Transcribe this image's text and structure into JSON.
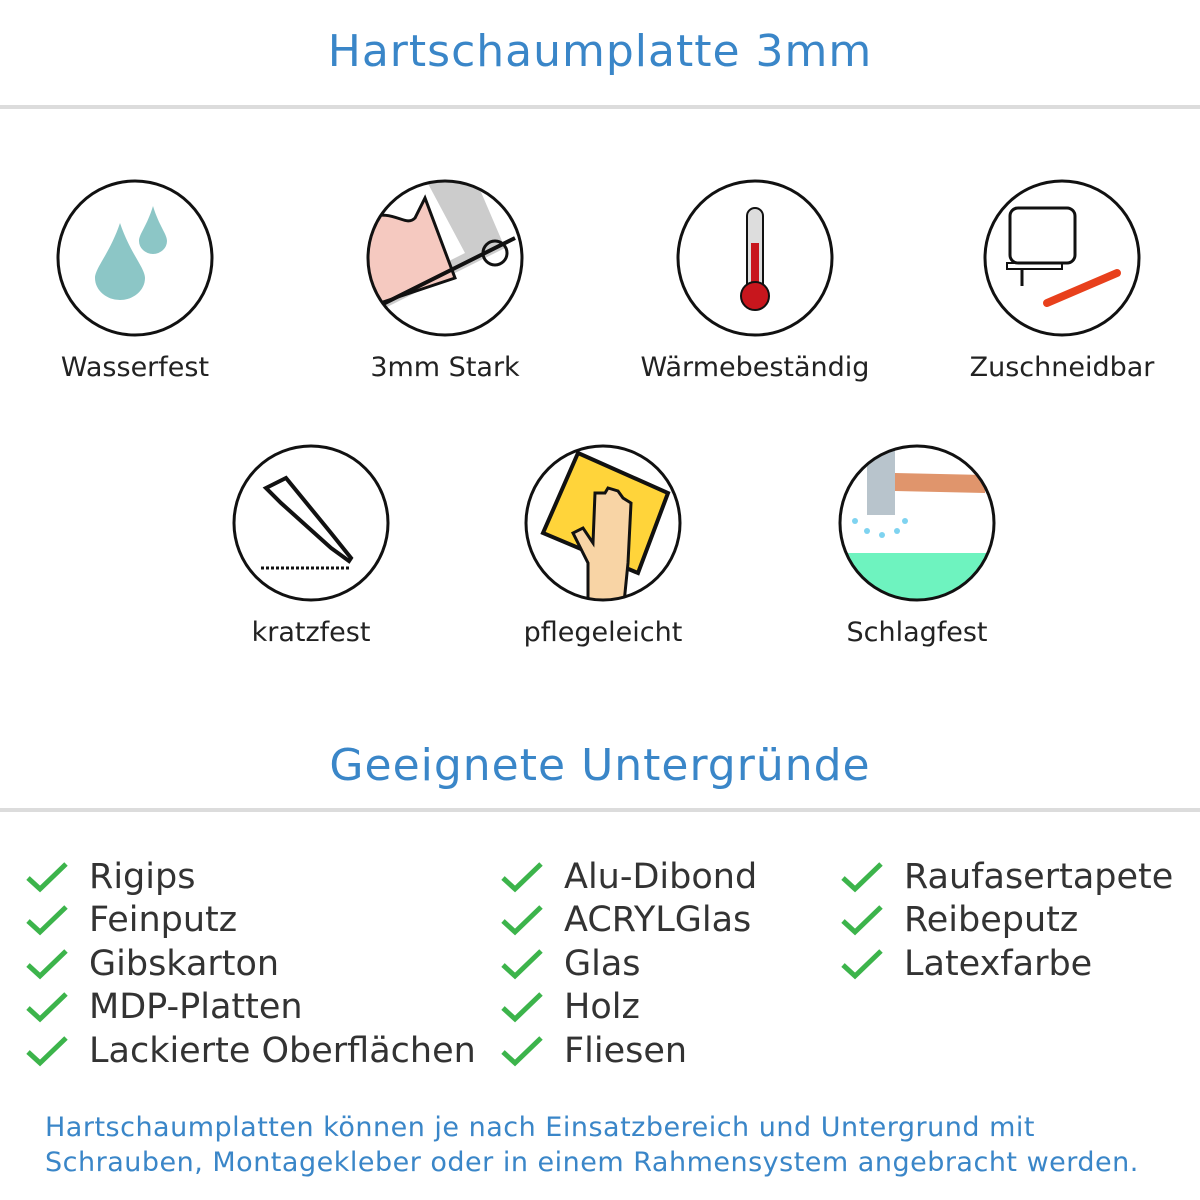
{
  "header": {
    "title": "Hartschaumplatte 3mm"
  },
  "features": [
    {
      "label": "Wasserfest",
      "icon": "water-drops-icon"
    },
    {
      "label": "3mm Stark",
      "icon": "strong-arm-icon"
    },
    {
      "label": "Wärmebeständig",
      "icon": "thermometer-icon"
    },
    {
      "label": "Zuschneidbar",
      "icon": "jigsaw-cutter-icon"
    },
    {
      "label": "kratzfest",
      "icon": "cutter-knife-icon"
    },
    {
      "label": "pflegeleicht",
      "icon": "cleaning-hand-icon"
    },
    {
      "label": "Schlagfest",
      "icon": "hammer-icon"
    }
  ],
  "surfaces": {
    "title": "Geeignete Untergründe",
    "check_color": "#3cb44b",
    "columns": [
      [
        "Rigips",
        "Feinputz",
        "Gibskarton",
        "MDP-Platten",
        "Lackierte Oberflächen"
      ],
      [
        "Alu-Dibond",
        "ACRYLGlas",
        "Glas",
        "Holz",
        "Fliesen"
      ],
      [
        "Raufasertapete",
        "Reibeputz",
        "Latexfarbe"
      ]
    ]
  },
  "footer": {
    "line1": "Hartschaumplatten können je nach Einsatzbereich und Untergrund mit",
    "line2": "Schrauben, Montagekleber oder in einem Rahmensystem angebracht werden."
  },
  "colors": {
    "accent": "#3a86c8",
    "rule": "#dcdcdc"
  }
}
